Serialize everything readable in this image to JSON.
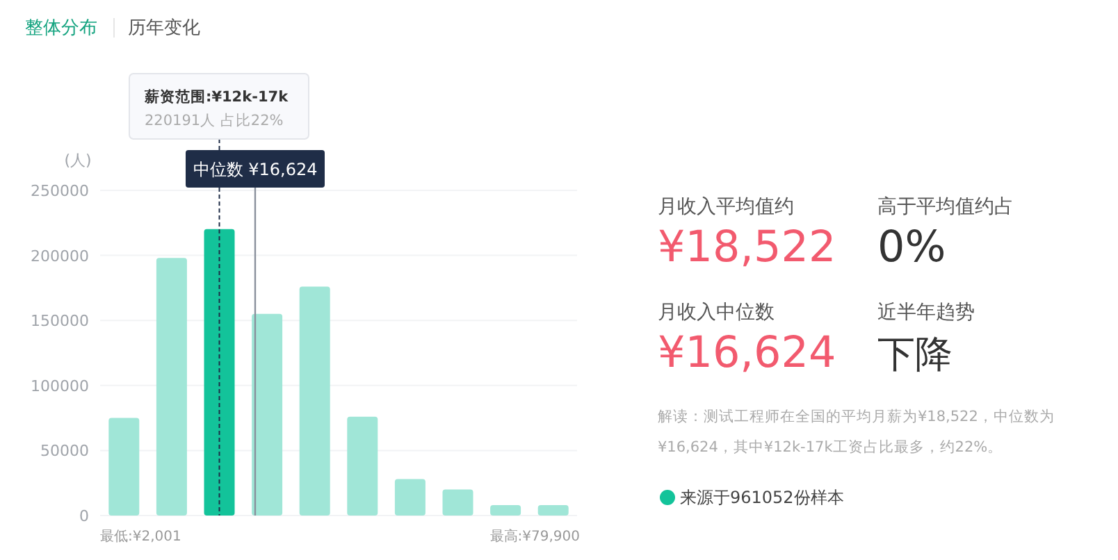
{
  "chart_data": [
    {
      "type": "bar",
      "ylabel": "(人)",
      "categories": [
        null,
        null,
        null,
        null,
        null,
        null,
        null,
        null,
        null,
        null
      ],
      "values": [
        75000,
        198000,
        220191,
        155000,
        176000,
        76000,
        28000,
        20000,
        8000,
        8000
      ],
      "colors": [
        "#a0e6d7",
        "#a0e6d7",
        "#13c39a",
        "#a0e6d7",
        "#a0e6d7",
        "#a0e6d7",
        "#a0e6d7",
        "#a0e6d7",
        "#a0e6d7",
        "#a0e6d7"
      ],
      "ylim": [
        0,
        250000
      ],
      "yticks": [
        0,
        50000,
        100000,
        150000,
        200000,
        250000
      ],
      "grid": "y",
      "tick_labels": "y",
      "annotations": [
        "整体分布",
        "历年变化",
        "薪资范围:¥12k-17k",
        "220191人  占比22%",
        "最低:¥2,001",
        "最高:¥79,900",
        "中位数 ¥16,624"
      ]
    },
    {
      "type": "other",
      "annotations": [
        "月收入平均值约",
        "¥18,522",
        "高于平均值约占",
        "0%",
        "月收入中位数",
        "¥16,624",
        "近半年趋势",
        "下降",
        "解读：测试工程师在全国的平均月薪为¥18,522，中位数为",
        "¥16,624，其中¥12k-17k工资占比最多，约22%。",
        "来源于961052份样本"
      ]
    }
  ]
}
